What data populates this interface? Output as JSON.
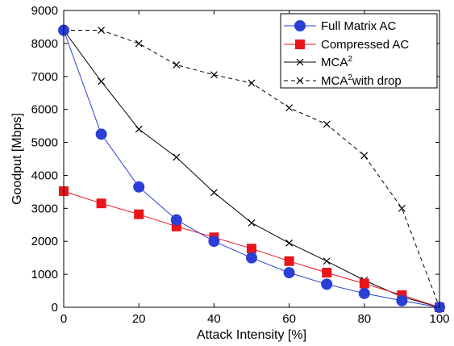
{
  "chart_data": {
    "type": "line",
    "title": "",
    "xlabel": "Attack Intensity [%]",
    "ylabel": "Goodput [Mbps]",
    "xlim": [
      0,
      100
    ],
    "ylim": [
      0,
      9000
    ],
    "x_ticks": [
      0,
      20,
      40,
      60,
      80,
      100
    ],
    "y_ticks": [
      0,
      1000,
      2000,
      3000,
      4000,
      5000,
      6000,
      7000,
      8000,
      9000
    ],
    "x_tick_labels": [
      "0",
      "20",
      "40",
      "60",
      "80",
      "100"
    ],
    "y_tick_labels": [
      "0",
      "1000",
      "2000",
      "3000",
      "4000",
      "5000",
      "6000",
      "7000",
      "8000",
      "9000"
    ],
    "grid": false,
    "legend_position": "top-right",
    "x": [
      0,
      10,
      20,
      30,
      40,
      50,
      60,
      70,
      80,
      90,
      100
    ],
    "series": [
      {
        "name": "Full Matrix AC",
        "color": "#2a3fd6",
        "marker": "circle",
        "line_style": "solid",
        "values": [
          8400,
          5250,
          3650,
          2650,
          2000,
          1500,
          1050,
          700,
          420,
          200,
          0
        ]
      },
      {
        "name": "Compressed AC",
        "color": "#e8151b",
        "marker": "square",
        "line_style": "solid",
        "values": [
          3520,
          3150,
          2820,
          2450,
          2120,
          1780,
          1400,
          1050,
          720,
          370,
          0
        ]
      },
      {
        "name": "MCA",
        "name_superscript": "2",
        "color": "#000000",
        "marker": "x",
        "line_style": "solid",
        "values": [
          8400,
          6850,
          5400,
          4550,
          3480,
          2560,
          1950,
          1400,
          820,
          320,
          0
        ]
      },
      {
        "name": "MCA",
        "name_superscript": "2",
        "name_suffix": "with drop",
        "color": "#000000",
        "marker": "x",
        "line_style": "dashed",
        "values": [
          8400,
          8400,
          8000,
          7350,
          7050,
          6800,
          6050,
          5550,
          4600,
          3000,
          0
        ]
      }
    ]
  }
}
